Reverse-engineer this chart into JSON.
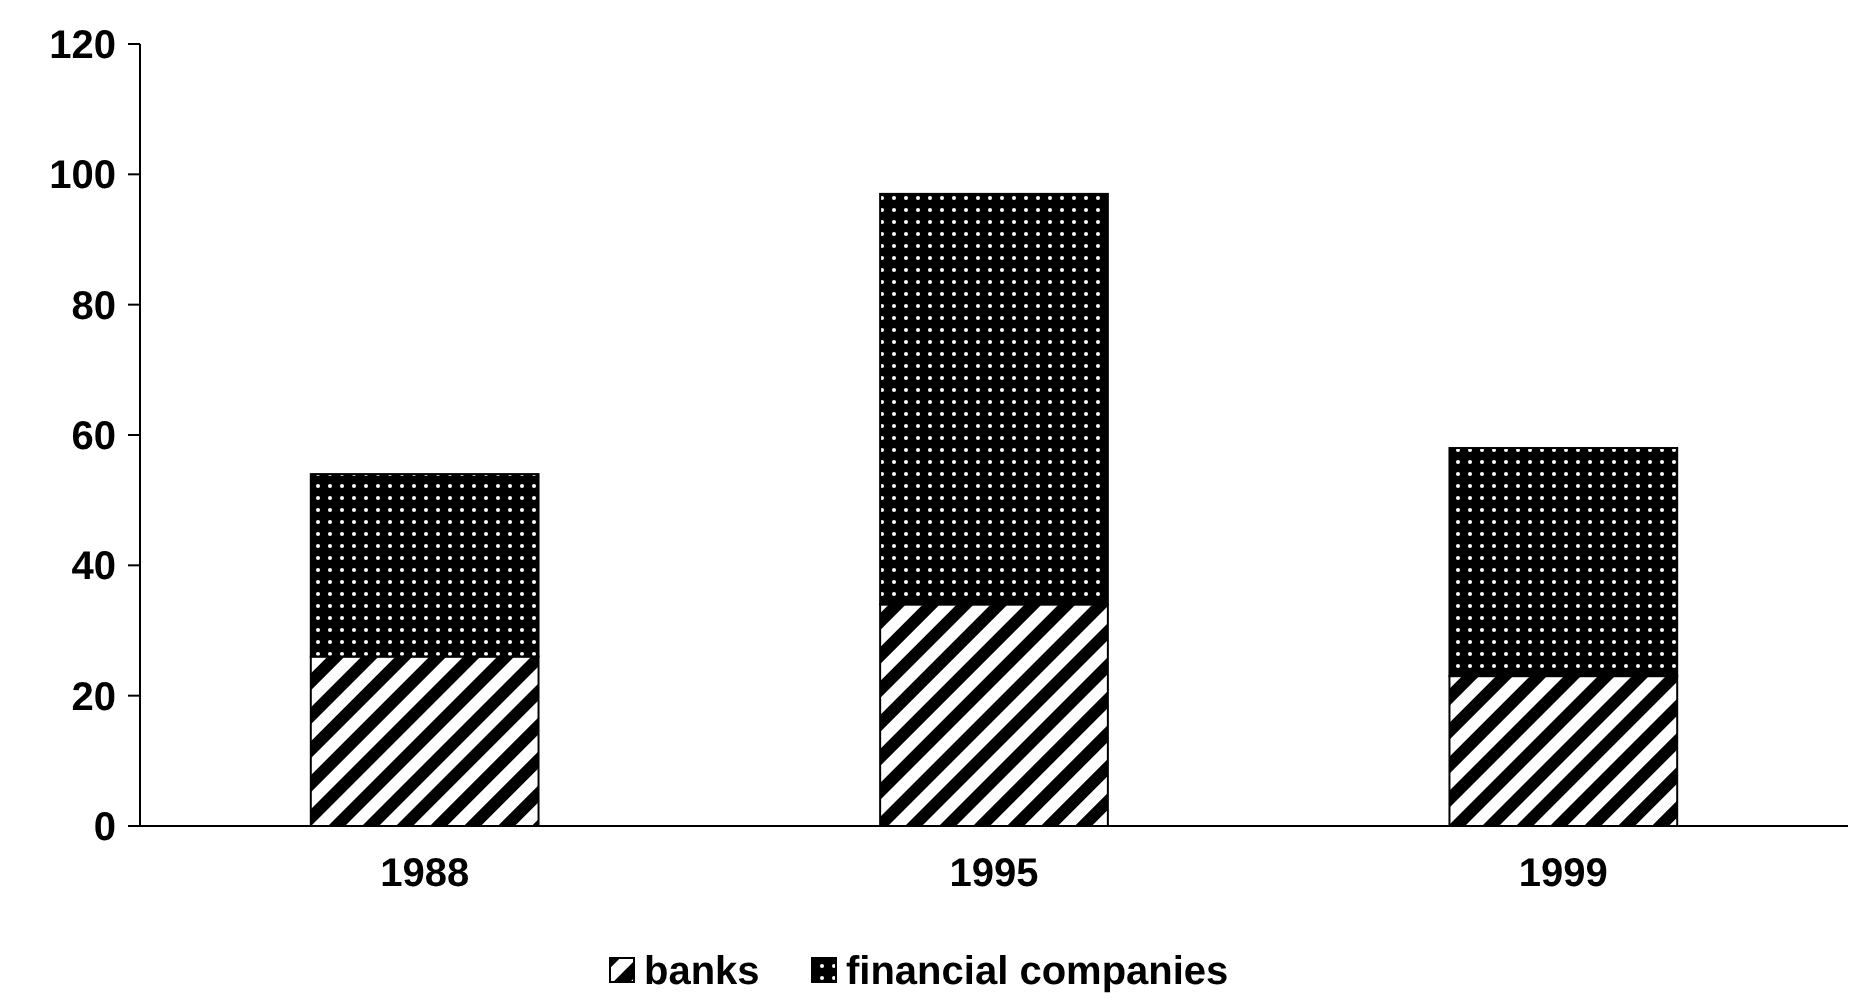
{
  "chart_data": {
    "type": "bar",
    "stacked": true,
    "categories": [
      "1988",
      "1995",
      "1999"
    ],
    "series": [
      {
        "name": "banks",
        "color": "#000000",
        "values": [
          26,
          34,
          23
        ]
      },
      {
        "name": "financial companies",
        "color": "#000000",
        "values": [
          28,
          63,
          35
        ]
      }
    ],
    "ylim": [
      0,
      120
    ],
    "yticks": [
      0,
      20,
      40,
      60,
      80,
      100,
      120
    ],
    "legend": "bottom"
  }
}
